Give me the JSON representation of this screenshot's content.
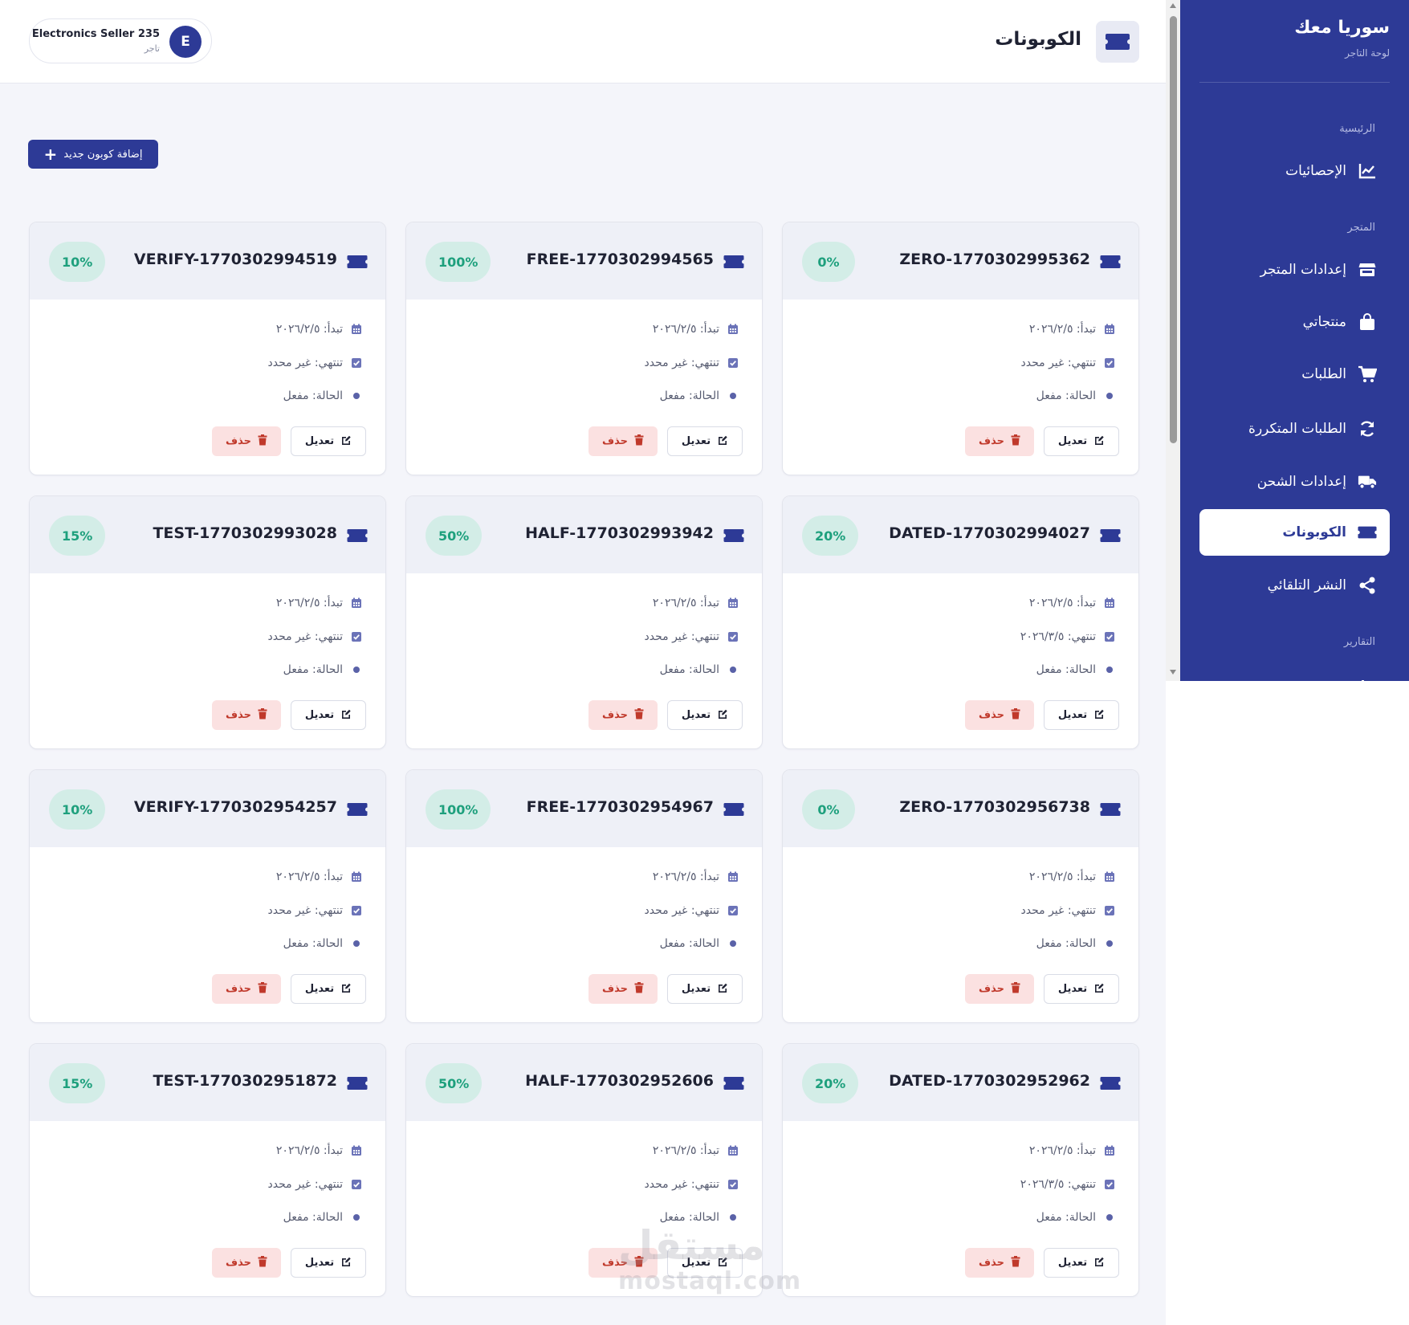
{
  "header": {
    "title": "الكوبونات",
    "user_name": "Electronics Seller 235",
    "user_role": "تاجر",
    "user_initial": "E"
  },
  "actions": {
    "add_coupon": "إضافة كوبون جديد"
  },
  "card_labels": {
    "start_prefix": "تبدأ:",
    "end_prefix": "تنتهي:",
    "status_prefix": "الحالة:",
    "edit": "تعديل",
    "delete": "حذف"
  },
  "coupons": [
    {
      "code": "ZERO-1770302995362",
      "discount": "0%",
      "start": "٢٠٢٦/٢/٥",
      "end": "غير محدد",
      "status": "مفعل"
    },
    {
      "code": "FREE-1770302994565",
      "discount": "100%",
      "start": "٢٠٢٦/٢/٥",
      "end": "غير محدد",
      "status": "مفعل"
    },
    {
      "code": "VERIFY-1770302994519",
      "discount": "10%",
      "start": "٢٠٢٦/٢/٥",
      "end": "غير محدد",
      "status": "مفعل"
    },
    {
      "code": "DATED-1770302994027",
      "discount": "20%",
      "start": "٢٠٢٦/٢/٥",
      "end": "٢٠٢٦/٣/٥",
      "status": "مفعل"
    },
    {
      "code": "HALF-1770302993942",
      "discount": "50%",
      "start": "٢٠٢٦/٢/٥",
      "end": "غير محدد",
      "status": "مفعل"
    },
    {
      "code": "TEST-1770302993028",
      "discount": "15%",
      "start": "٢٠٢٦/٢/٥",
      "end": "غير محدد",
      "status": "مفعل"
    },
    {
      "code": "ZERO-1770302956738",
      "discount": "0%",
      "start": "٢٠٢٦/٢/٥",
      "end": "غير محدد",
      "status": "مفعل"
    },
    {
      "code": "FREE-1770302954967",
      "discount": "100%",
      "start": "٢٠٢٦/٢/٥",
      "end": "غير محدد",
      "status": "مفعل"
    },
    {
      "code": "VERIFY-1770302954257",
      "discount": "10%",
      "start": "٢٠٢٦/٢/٥",
      "end": "غير محدد",
      "status": "مفعل"
    },
    {
      "code": "DATED-1770302952962",
      "discount": "20%",
      "start": "٢٠٢٦/٢/٥",
      "end": "٢٠٢٦/٣/٥",
      "status": "مفعل"
    },
    {
      "code": "HALF-1770302952606",
      "discount": "50%",
      "start": "٢٠٢٦/٢/٥",
      "end": "غير محدد",
      "status": "مفعل"
    },
    {
      "code": "TEST-1770302951872",
      "discount": "15%",
      "start": "٢٠٢٦/٢/٥",
      "end": "غير محدد",
      "status": "مفعل"
    }
  ],
  "sidebar": {
    "brand": "سوريا معك",
    "subtitle": "لوحة التاجر",
    "sections": {
      "main": "الرئيسية",
      "store": "المتجر",
      "reports": "التقارير"
    },
    "items": [
      {
        "label": "الإحصائيات",
        "icon": "chart-line-icon"
      },
      {
        "label": "إعدادات المتجر",
        "icon": "store-icon"
      },
      {
        "label": "منتجاتي",
        "icon": "shopping-bag-icon"
      },
      {
        "label": "الطلبات",
        "icon": "cart-icon"
      },
      {
        "label": "الطلبات المتكررة",
        "icon": "sync-icon"
      },
      {
        "label": "إعدادات الشحن",
        "icon": "truck-icon"
      },
      {
        "label": "الكوبونات",
        "icon": "ticket-icon",
        "active": true
      },
      {
        "label": "النشر التلقائي",
        "icon": "share-icon"
      }
    ]
  },
  "watermark": {
    "text": "مستقل",
    "sub": "mostaql.com"
  },
  "colors": {
    "primary": "#2d3a96",
    "badge_bg": "#d3ede7",
    "badge_text": "#1ea07d",
    "delete_bg": "#fbe1e1",
    "delete_text": "#c0392b"
  }
}
